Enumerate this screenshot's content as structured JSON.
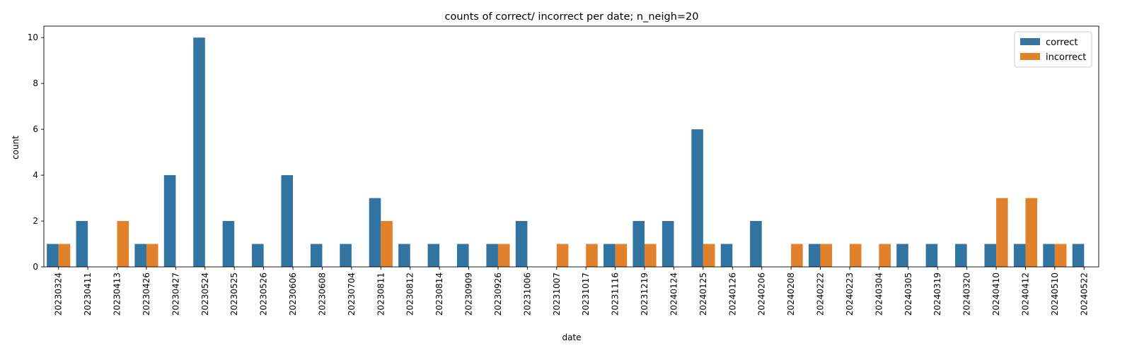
{
  "chart_data": {
    "type": "bar",
    "title": "counts of correct/ incorrect per date; n_neigh=20",
    "xlabel": "date",
    "ylabel": "count",
    "ylim": [
      0,
      10.5
    ],
    "yticks": [
      0,
      2,
      4,
      6,
      8,
      10
    ],
    "grid": false,
    "legend_position": "top-right",
    "categories": [
      "20230324",
      "20230411",
      "20230413",
      "20230426",
      "20230427",
      "20230524",
      "20230525",
      "20230526",
      "20230606",
      "20230608",
      "20230704",
      "20230811",
      "20230812",
      "20230814",
      "20230909",
      "20230926",
      "20231006",
      "20231007",
      "20231017",
      "20231116",
      "20231219",
      "20240124",
      "20240125",
      "20240126",
      "20240206",
      "20240208",
      "20240222",
      "20240223",
      "20240304",
      "20240305",
      "20240319",
      "20240320",
      "20240410",
      "20240412",
      "20240510",
      "20240522"
    ],
    "series": [
      {
        "name": "correct",
        "color": "#3274a1",
        "values": [
          1,
          2,
          0,
          1,
          4,
          10,
          2,
          1,
          4,
          1,
          1,
          3,
          1,
          1,
          1,
          1,
          2,
          0,
          0,
          1,
          2,
          2,
          6,
          1,
          2,
          0,
          1,
          0,
          0,
          1,
          1,
          1,
          1,
          1,
          1,
          1
        ]
      },
      {
        "name": "incorrect",
        "color": "#e1812c",
        "values": [
          1,
          0,
          2,
          1,
          0,
          0,
          0,
          0,
          0,
          0,
          0,
          2,
          0,
          0,
          0,
          1,
          0,
          1,
          1,
          1,
          1,
          0,
          1,
          0,
          0,
          1,
          1,
          1,
          1,
          0,
          0,
          0,
          3,
          3,
          1,
          0
        ]
      }
    ]
  }
}
